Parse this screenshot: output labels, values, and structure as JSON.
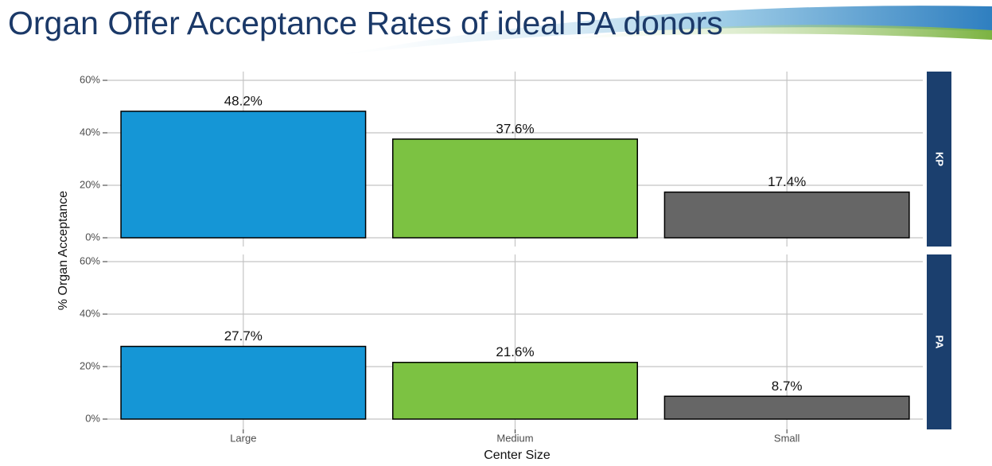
{
  "chart_data": {
    "type": "bar",
    "title": "Organ Offer Acceptance Rates of ideal PA donors",
    "y_label": "% Organ Acceptance",
    "x_label": "Center Size",
    "categories": [
      "Large",
      "Medium",
      "Small"
    ],
    "colors": [
      "#1596d6",
      "#7cc242",
      "#666666"
    ],
    "ylim": [
      0,
      60
    ],
    "yticks": [
      {
        "value": 0,
        "label": "0%"
      },
      {
        "value": 20,
        "label": "20%"
      },
      {
        "value": 40,
        "label": "40%"
      },
      {
        "value": 60,
        "label": "60%"
      }
    ],
    "grid": true,
    "facets": [
      {
        "name": "KP",
        "values": [
          48.2,
          37.6,
          17.4
        ],
        "value_labels": [
          "48.2%",
          "37.6%",
          "17.4%"
        ]
      },
      {
        "name": "PA",
        "values": [
          27.7,
          21.6,
          8.7
        ],
        "value_labels": [
          "27.7%",
          "21.6%",
          "8.7%"
        ]
      }
    ]
  }
}
